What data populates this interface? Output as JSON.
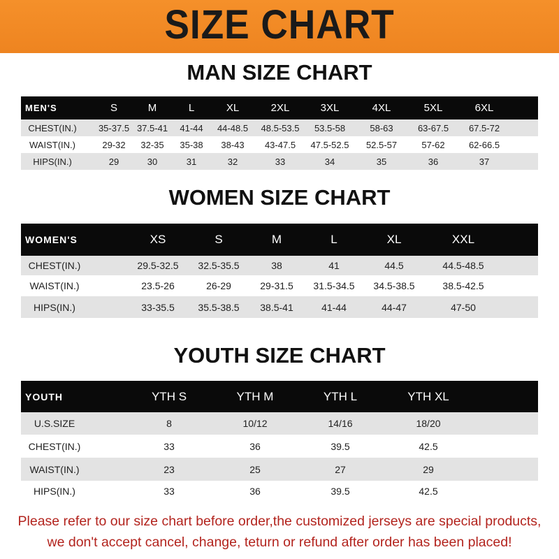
{
  "banner": {
    "title": "SIZE CHART",
    "color": "#f08a24"
  },
  "men": {
    "title": "MAN SIZE CHART",
    "header": [
      "MEN'S",
      "S",
      "M",
      "L",
      "XL",
      "2XL",
      "3XL",
      "4XL",
      "5XL",
      "6XL"
    ],
    "rows": [
      [
        "CHEST(IN.)",
        "35-37.5",
        "37.5-41",
        "41-44",
        "44-48.5",
        "48.5-53.5",
        "53.5-58",
        "58-63",
        "63-67.5",
        "67.5-72"
      ],
      [
        "WAIST(IN.)",
        "29-32",
        "32-35",
        "35-38",
        "38-43",
        "43-47.5",
        "47.5-52.5",
        "52.5-57",
        "57-62",
        "62-66.5"
      ],
      [
        "HIPS(IN.)",
        "29",
        "30",
        "31",
        "32",
        "33",
        "34",
        "35",
        "36",
        "37"
      ]
    ]
  },
  "women": {
    "title": "WOMEN SIZE CHART",
    "header": [
      "WOMEN'S",
      "XS",
      "S",
      "M",
      "L",
      "XL",
      "XXL"
    ],
    "rows": [
      [
        "CHEST(IN.)",
        "29.5-32.5",
        "32.5-35.5",
        "38",
        "41",
        "44.5",
        "44.5-48.5"
      ],
      [
        "WAIST(IN.)",
        "23.5-26",
        "26-29",
        "29-31.5",
        "31.5-34.5",
        "34.5-38.5",
        "38.5-42.5"
      ],
      [
        "HIPS(IN.)",
        "33-35.5",
        "35.5-38.5",
        "38.5-41",
        "41-44",
        "44-47",
        "47-50"
      ]
    ]
  },
  "youth": {
    "title": "YOUTH SIZE CHART",
    "header": [
      "YOUTH",
      "YTH S",
      "YTH M",
      "YTH L",
      "YTH XL"
    ],
    "rows": [
      [
        "U.S.SIZE",
        "8",
        "10/12",
        "14/16",
        "18/20"
      ],
      [
        "CHEST(IN.)",
        "33",
        "36",
        "39.5",
        "42.5"
      ],
      [
        "WAIST(IN.)",
        "23",
        "25",
        "27",
        "29"
      ],
      [
        "HIPS(IN.)",
        "33",
        "36",
        "39.5",
        "42.5"
      ]
    ]
  },
  "footer": {
    "line1": "Please refer to our size chart before order,the customized jerseys are special products,",
    "line2": "we don't accept cancel, change, teturn or refund after order has been placed!",
    "color": "#b3241e"
  }
}
